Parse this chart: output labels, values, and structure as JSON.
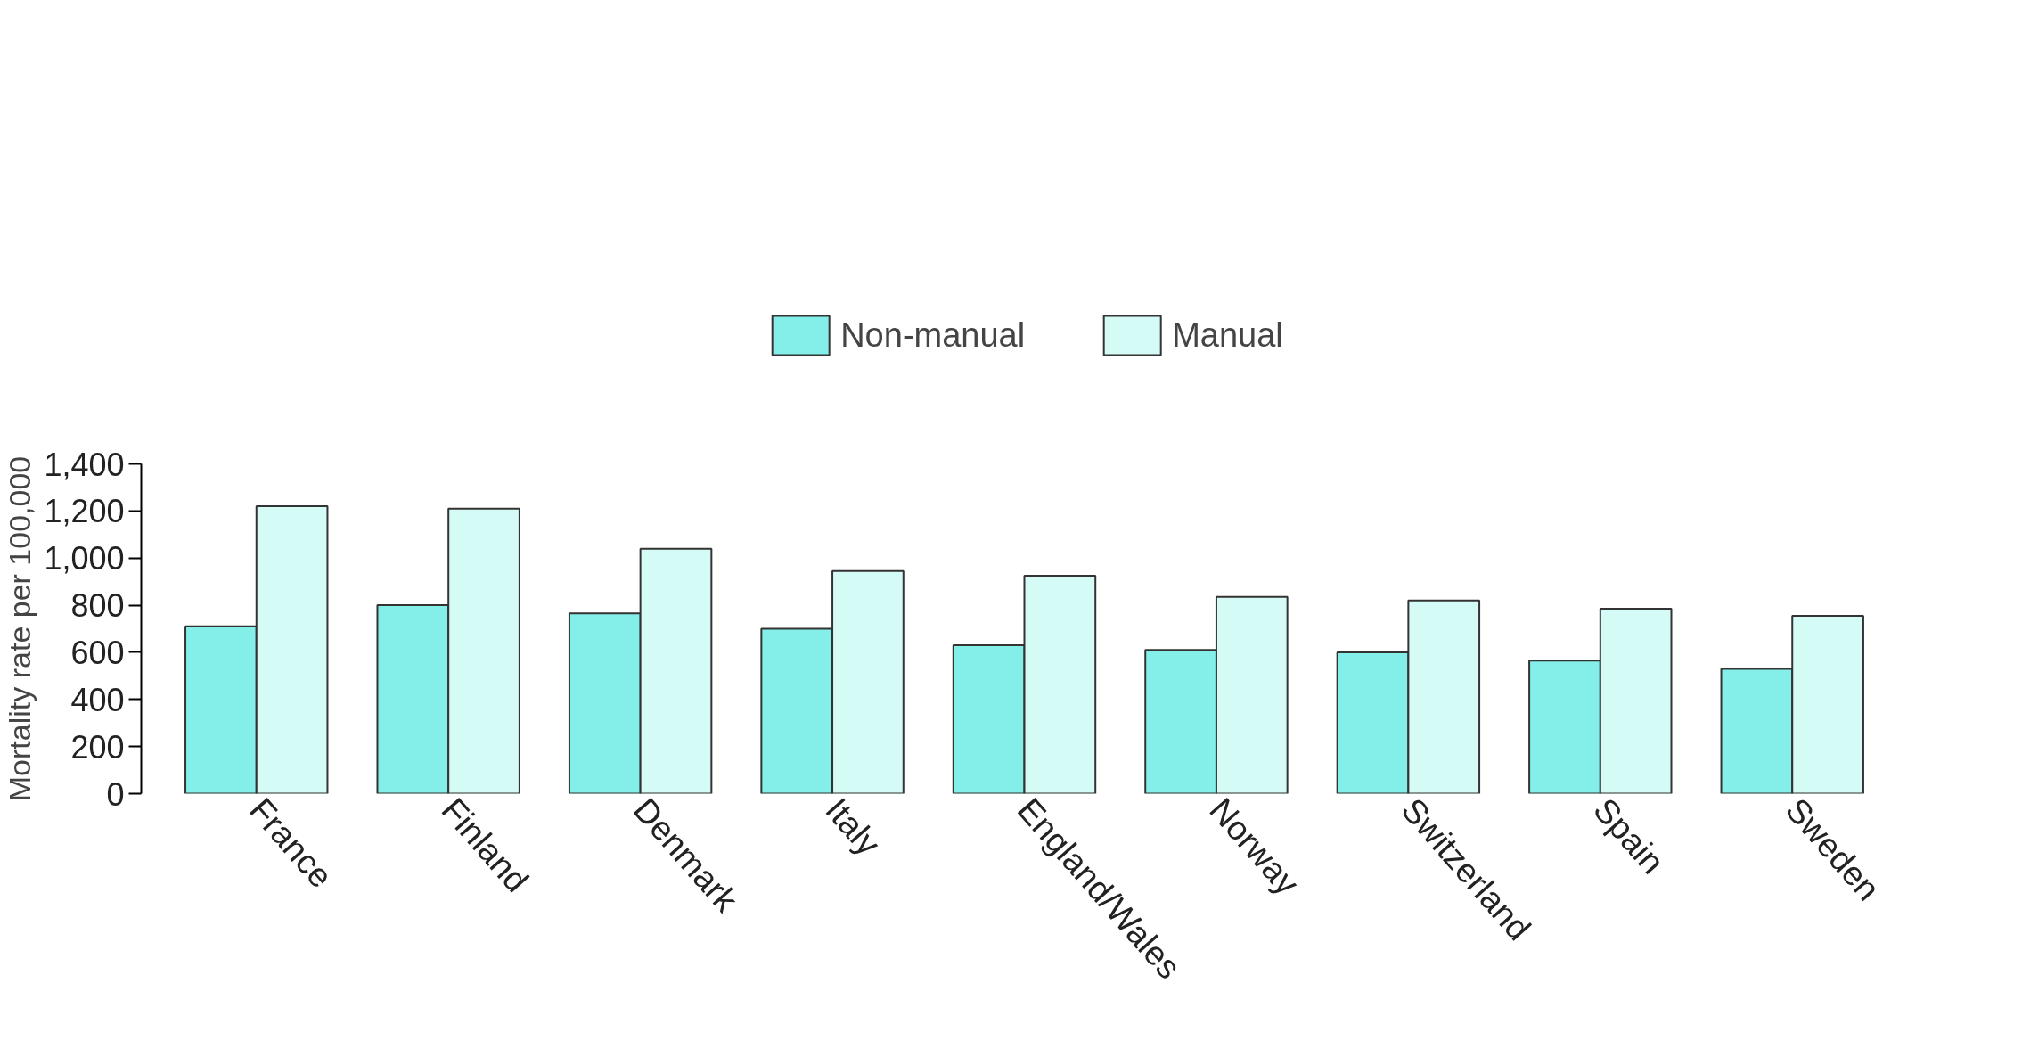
{
  "chart_data": {
    "type": "bar",
    "ylabel": "Mortality rate per 100,000",
    "categories": [
      "France",
      "Finland",
      "Denmark",
      "Italy",
      "England/Wales",
      "Norway",
      "Switzerland",
      "Spain",
      "Sweden"
    ],
    "series": [
      {
        "name": "Non-manual",
        "color": "#84efe9",
        "values": [
          710,
          800,
          765,
          700,
          630,
          610,
          600,
          565,
          530
        ]
      },
      {
        "name": "Manual",
        "color": "#d4fbf5",
        "values": [
          1220,
          1210,
          1040,
          945,
          925,
          835,
          820,
          785,
          755
        ]
      }
    ],
    "ylim": [
      0,
      1400
    ],
    "yticks": [
      0,
      200,
      400,
      600,
      800,
      {
        "value": 1000,
        "label": "1,000"
      },
      {
        "value": 1200,
        "label": "1,200"
      },
      {
        "value": 1400,
        "label": "1,400"
      }
    ],
    "grid": false,
    "legend": "top"
  }
}
